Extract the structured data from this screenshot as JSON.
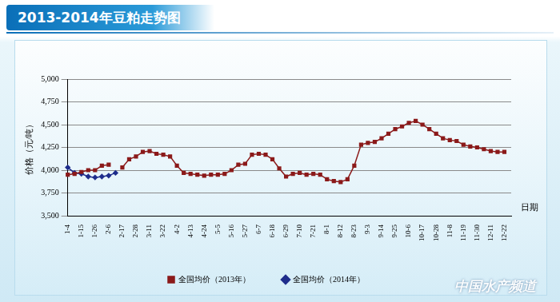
{
  "chart_data": {
    "type": "line",
    "title": "2013-2014年豆粕走势图",
    "y_label": "价格（元/吨）",
    "x_label": "日期",
    "annotations": [
      "中国水产频道"
    ],
    "categories": [
      "1-4",
      null,
      "1-15",
      null,
      "1-26",
      null,
      "2-6",
      null,
      "2-17",
      null,
      "2-28",
      null,
      "3-11",
      null,
      "3-22",
      null,
      "4-2",
      null,
      "4-13",
      null,
      "4-24",
      null,
      "5-5",
      null,
      "5-16",
      null,
      "5-27",
      null,
      "6-7",
      null,
      "6-18",
      null,
      "6-29",
      null,
      "7-10",
      null,
      "7-21",
      null,
      "8-1",
      null,
      "8-12",
      null,
      "8-23",
      null,
      "9-3",
      null,
      "9-14",
      null,
      "9-25",
      null,
      "10-6",
      null,
      "10-17",
      null,
      "10-28",
      null,
      "11-8",
      null,
      "11-19",
      null,
      "11-30",
      null,
      "12-11",
      null,
      "12-22",
      null
    ],
    "series": [
      {
        "name": "全国均价（2013年）",
        "color": "#8b1a1a",
        "marker": "square",
        "values": [
          3950,
          3960,
          3980,
          4000,
          4000,
          4050,
          4060,
          null,
          4030,
          4120,
          4150,
          4200,
          4210,
          4180,
          4170,
          4150,
          4050,
          3970,
          3960,
          3950,
          3940,
          3950,
          3950,
          3960,
          4000,
          4060,
          4070,
          4170,
          4180,
          4170,
          4120,
          4020,
          3930,
          3960,
          3970,
          3950,
          3960,
          3950,
          3900,
          3880,
          3870,
          3900,
          4050,
          4280,
          4300,
          4310,
          4350,
          4400,
          4450,
          4480,
          4520,
          4540,
          4500,
          4450,
          4400,
          4350,
          4330,
          4320,
          4280,
          4260,
          4250,
          4230,
          4210,
          4200,
          4200,
          null
        ]
      },
      {
        "name": "全国均价（2014年）",
        "color": "#1f2d8c",
        "marker": "diamond",
        "values": [
          4030,
          3970,
          3960,
          3930,
          3920,
          3930,
          3940,
          3970,
          null,
          null,
          null,
          null,
          null,
          null,
          null,
          null,
          null,
          null,
          null,
          null,
          null,
          null,
          null,
          null,
          null,
          null,
          null,
          null,
          null,
          null,
          null,
          null,
          null,
          null,
          null,
          null,
          null,
          null,
          null,
          null,
          null,
          null,
          null,
          null,
          null,
          null,
          null,
          null,
          null,
          null,
          null,
          null,
          null,
          null,
          null,
          null,
          null,
          null,
          null,
          null,
          null,
          null,
          null,
          null,
          null,
          null
        ]
      }
    ],
    "ylim": [
      3500,
      5000
    ],
    "yticks": [
      3500,
      3750,
      4000,
      4250,
      4500,
      4750,
      5000
    ],
    "grid": true,
    "legend": "bottom"
  }
}
